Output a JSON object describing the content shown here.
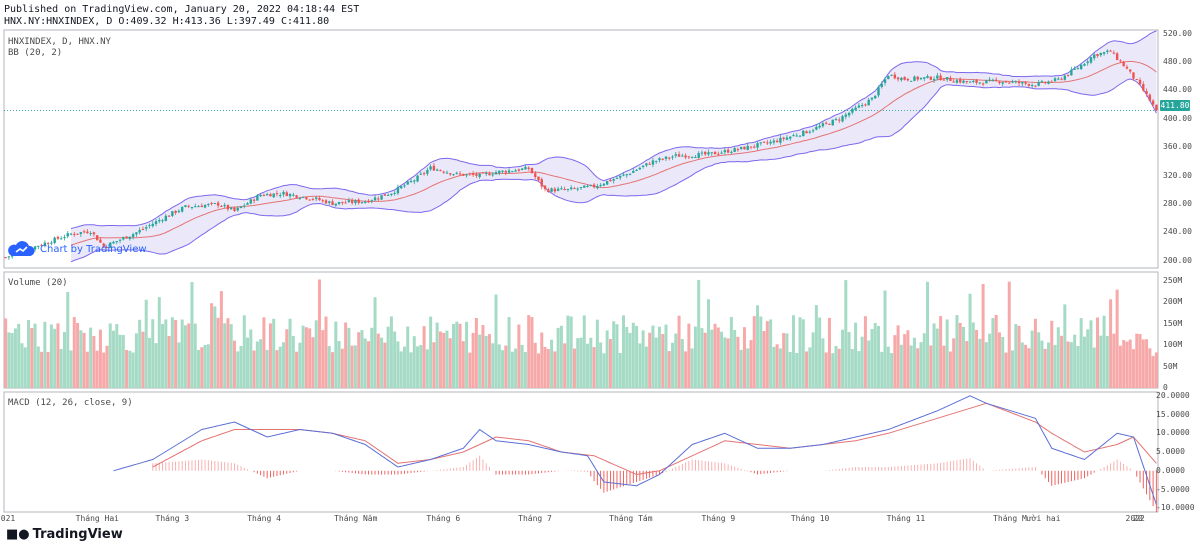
{
  "header": {
    "published": "Published on TradingView.com, January 20, 2022 04:18:44 EST",
    "ohlc": "HNX.NY:HNXINDEX, D O:409.32 H:413.36 L:397.49 C:411.80"
  },
  "panels": {
    "price_label": "HNXINDEX, D, HNX.NY",
    "bb_label": "BB (20, 2)",
    "volume_label": "Volume (20)",
    "macd_label": "MACD (12, 26, close, 9)",
    "watermark": "Chart by TradingView"
  },
  "last_price": "411.80",
  "footer": {
    "brand": "TradingView"
  },
  "colors": {
    "up": "#26a69a",
    "down": "#ef5350",
    "vol_up": "#a5dbc5",
    "vol_down": "#f7a9a9",
    "bb_band": "#7b68ee",
    "bb_mid": "#e57373",
    "bb_fill": "#e6e4f7",
    "macd_line": "#5b6fd6",
    "signal_line": "#e57373"
  },
  "chart_data": [
    {
      "type": "candlestick",
      "title": "HNXINDEX, D, HNX.NY",
      "overlay": "BB (20, 2)",
      "y_ticks": [
        "520.00",
        "480.00",
        "440.00",
        "400.00",
        "360.00",
        "320.00",
        "280.00",
        "240.00",
        "200.00"
      ],
      "ylim": [
        190,
        525
      ],
      "x_ticks": [
        "021",
        "Tháng Hai",
        "Tháng 3",
        "Tháng 4",
        "Tháng Năm",
        "Tháng 6",
        "Tháng 7",
        "Tháng Tám",
        "Tháng 9",
        "Tháng 10",
        "Tháng 11",
        "Tháng Mười hai",
        "2022",
        "20"
      ],
      "path_anchors": [
        [
          0,
          205
        ],
        [
          10,
          222
        ],
        [
          20,
          238
        ],
        [
          26,
          242
        ],
        [
          30,
          220
        ],
        [
          40,
          240
        ],
        [
          50,
          265
        ],
        [
          55,
          276
        ],
        [
          65,
          280
        ],
        [
          70,
          270
        ],
        [
          78,
          293
        ],
        [
          85,
          295
        ],
        [
          95,
          287
        ],
        [
          100,
          281
        ],
        [
          110,
          284
        ],
        [
          118,
          296
        ],
        [
          125,
          314
        ],
        [
          130,
          331
        ],
        [
          138,
          322
        ],
        [
          145,
          320
        ],
        [
          150,
          325
        ],
        [
          160,
          330
        ],
        [
          165,
          300
        ],
        [
          172,
          300
        ],
        [
          180,
          305
        ],
        [
          190,
          322
        ],
        [
          198,
          340
        ],
        [
          205,
          348
        ],
        [
          215,
          350
        ],
        [
          225,
          358
        ],
        [
          235,
          368
        ],
        [
          245,
          382
        ],
        [
          255,
          400
        ],
        [
          265,
          428
        ],
        [
          270,
          462
        ],
        [
          275,
          456
        ],
        [
          285,
          458
        ],
        [
          295,
          451
        ],
        [
          305,
          453
        ],
        [
          315,
          448
        ],
        [
          322,
          455
        ],
        [
          328,
          472
        ],
        [
          333,
          490
        ],
        [
          338,
          495
        ],
        [
          343,
          470
        ],
        [
          348,
          440
        ],
        [
          352,
          411.8
        ]
      ],
      "last_close": 411.8
    },
    {
      "type": "bar",
      "title": "Volume (20)",
      "y_ticks": [
        "250M",
        "200M",
        "150M",
        "100M",
        "50M",
        "0"
      ],
      "ylim": [
        0,
        270
      ]
    },
    {
      "type": "line",
      "title": "MACD (12, 26, close, 9)",
      "y_ticks": [
        "20.0000",
        "15.0000",
        "10.0000",
        "5.0000",
        "0.0000",
        "-5.0000",
        "-10.0000"
      ],
      "ylim": [
        -11,
        21
      ],
      "macd_anchors": [
        [
          33,
          0
        ],
        [
          45,
          3
        ],
        [
          60,
          11
        ],
        [
          70,
          13
        ],
        [
          75,
          11
        ],
        [
          80,
          9
        ],
        [
          90,
          11
        ],
        [
          100,
          10
        ],
        [
          110,
          7
        ],
        [
          120,
          1
        ],
        [
          130,
          3
        ],
        [
          140,
          6
        ],
        [
          145,
          11
        ],
        [
          150,
          8
        ],
        [
          160,
          7
        ],
        [
          170,
          5
        ],
        [
          178,
          4
        ],
        [
          183,
          -3
        ],
        [
          193,
          -4
        ],
        [
          200,
          -1
        ],
        [
          210,
          7
        ],
        [
          220,
          10
        ],
        [
          225,
          8
        ],
        [
          230,
          6
        ],
        [
          240,
          6
        ],
        [
          250,
          7
        ],
        [
          260,
          9
        ],
        [
          270,
          11
        ],
        [
          285,
          16
        ],
        [
          295,
          20
        ],
        [
          300,
          18
        ],
        [
          315,
          14
        ],
        [
          320,
          6
        ],
        [
          330,
          3
        ],
        [
          340,
          10
        ],
        [
          345,
          9
        ],
        [
          352,
          -9
        ]
      ],
      "signal_anchors": [
        [
          45,
          1
        ],
        [
          60,
          8
        ],
        [
          70,
          11
        ],
        [
          80,
          11
        ],
        [
          90,
          11
        ],
        [
          100,
          10
        ],
        [
          110,
          8
        ],
        [
          120,
          2
        ],
        [
          130,
          3
        ],
        [
          140,
          5
        ],
        [
          150,
          9
        ],
        [
          160,
          8
        ],
        [
          170,
          5
        ],
        [
          180,
          4
        ],
        [
          193,
          -1
        ],
        [
          200,
          0
        ],
        [
          210,
          4
        ],
        [
          220,
          8
        ],
        [
          230,
          7
        ],
        [
          240,
          6
        ],
        [
          250,
          7
        ],
        [
          260,
          8
        ],
        [
          270,
          10
        ],
        [
          285,
          14
        ],
        [
          300,
          18
        ],
        [
          315,
          13
        ],
        [
          320,
          10
        ],
        [
          330,
          5
        ],
        [
          340,
          7
        ],
        [
          345,
          9
        ],
        [
          352,
          2
        ]
      ]
    }
  ]
}
